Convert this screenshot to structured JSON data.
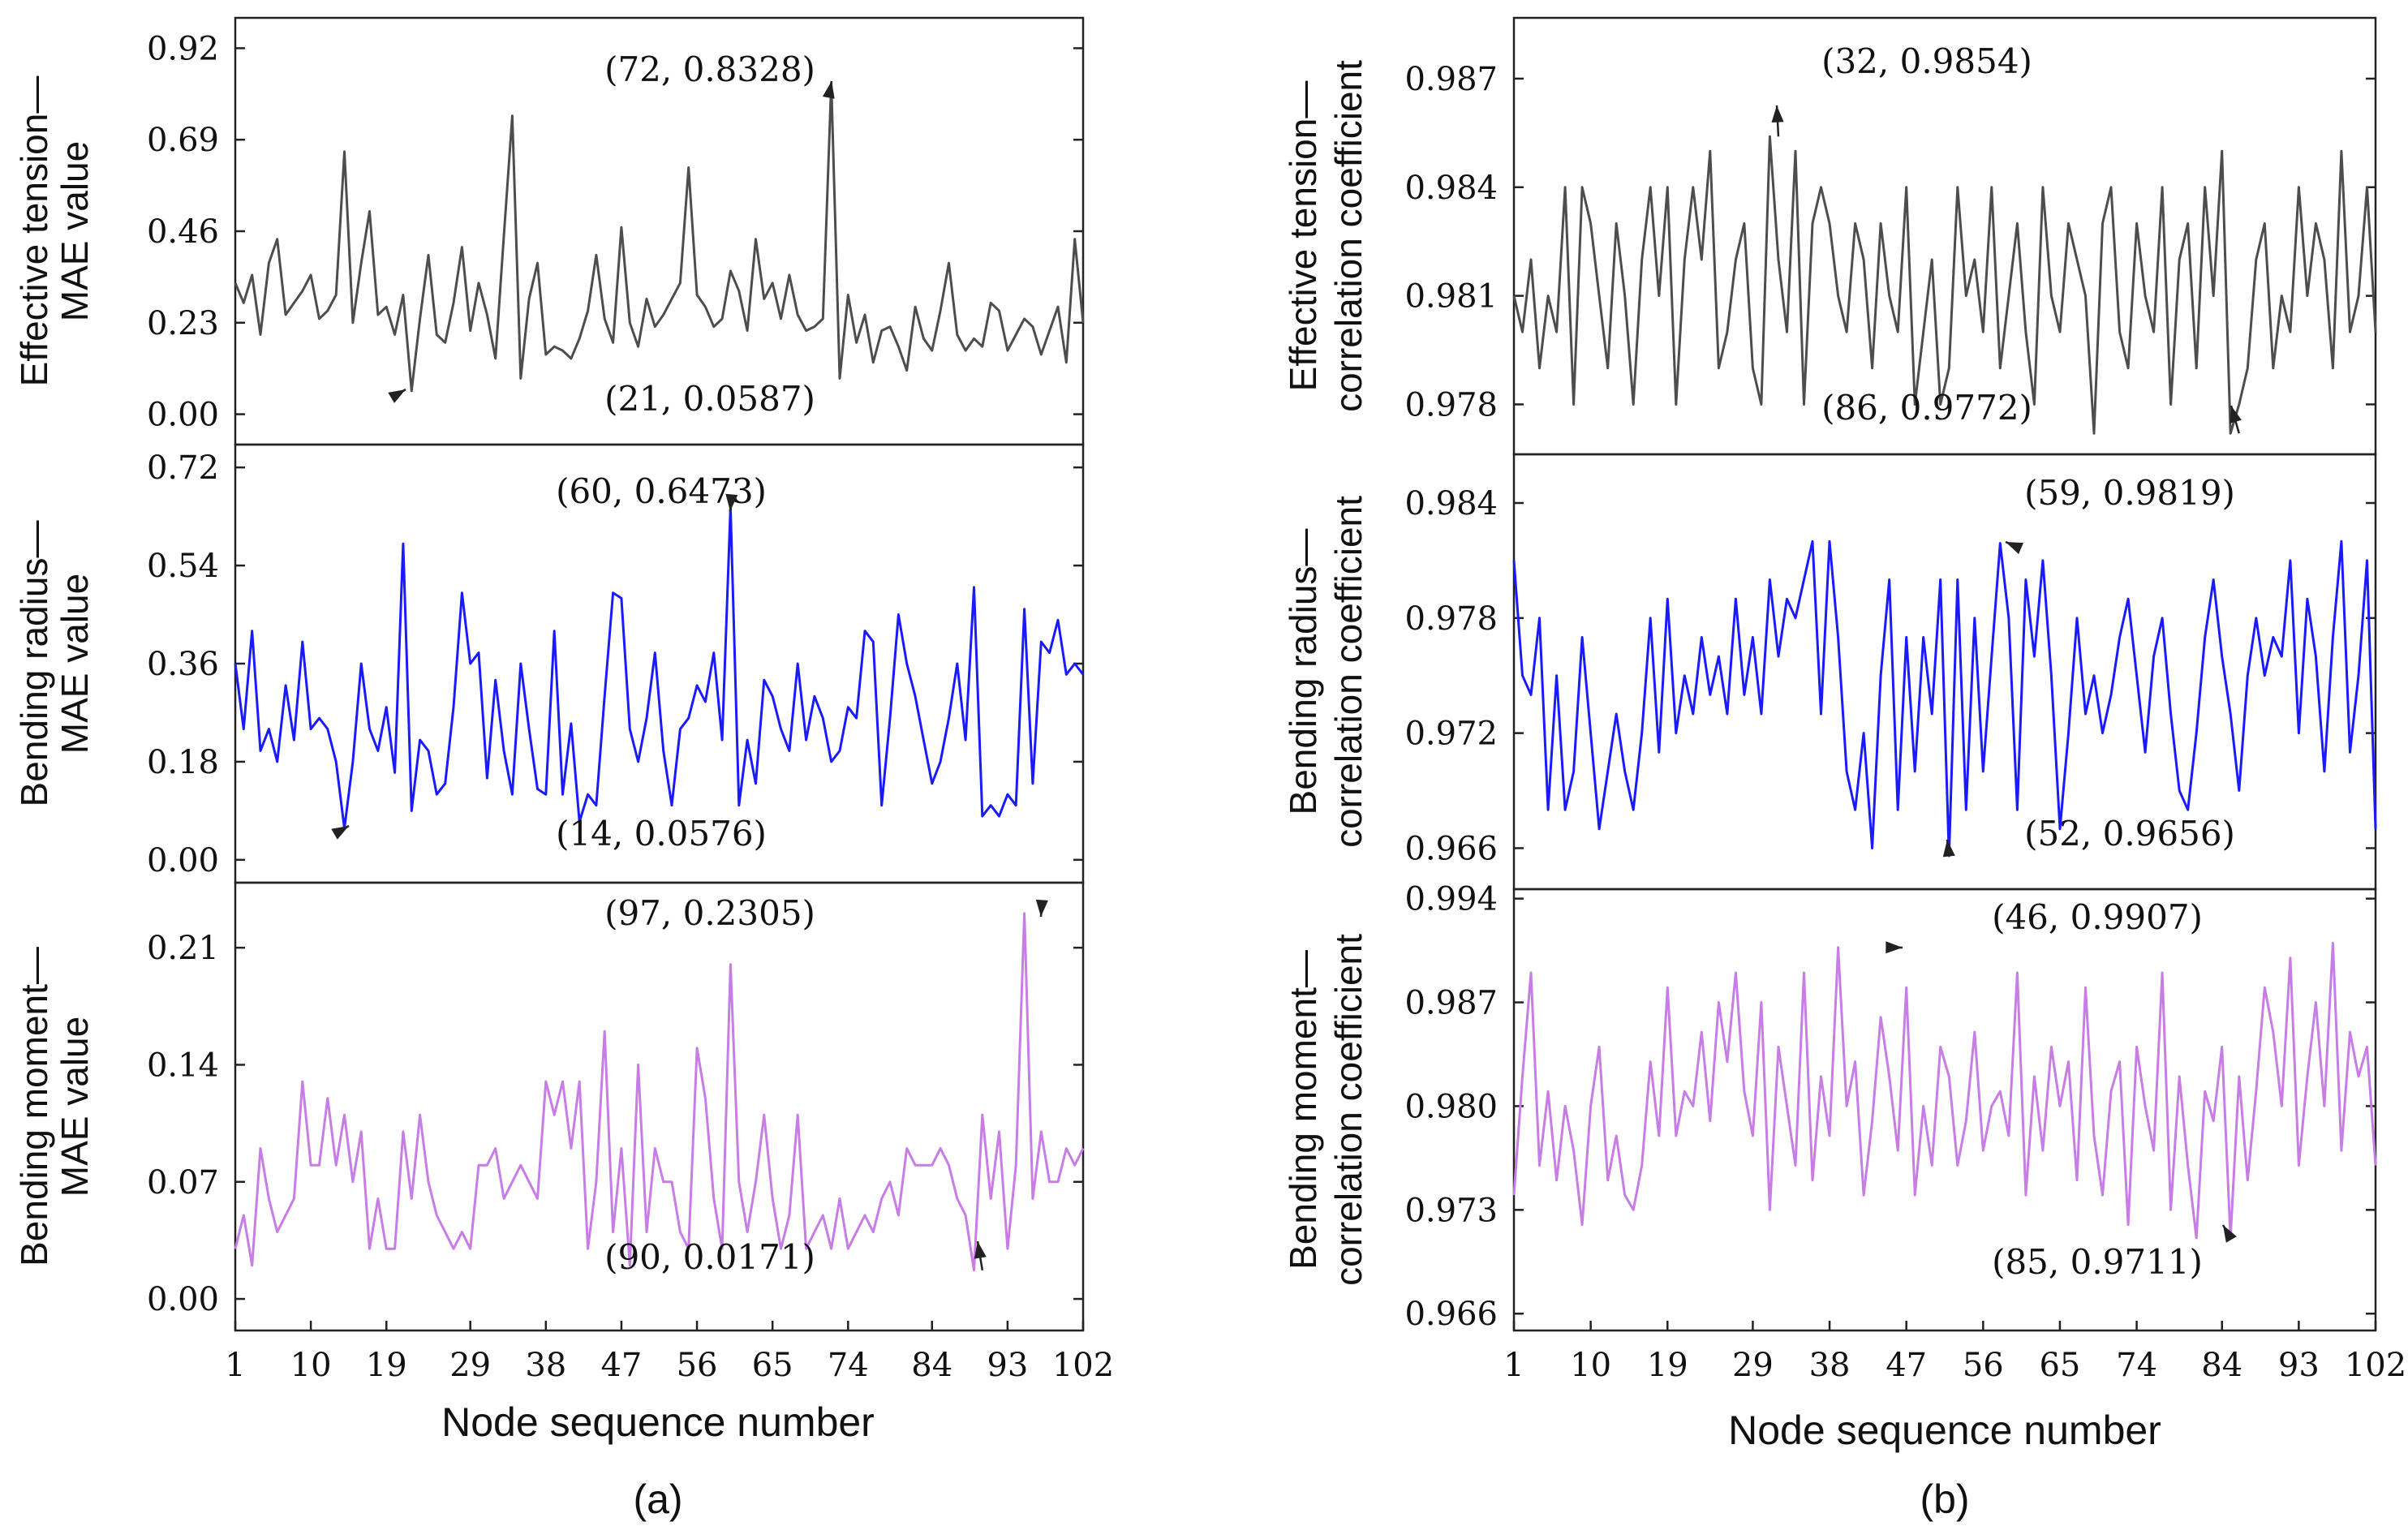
{
  "chart_data": [
    {
      "type": "line",
      "panel": "(a)",
      "xlabel": "Node sequence number",
      "x_ticks": [
        "1",
        "10",
        "19",
        "29",
        "38",
        "47",
        "56",
        "65",
        "74",
        "84",
        "93",
        "102"
      ],
      "xlim": [
        1,
        102
      ],
      "subplots": [
        {
          "series_name": "Effective tension MAE",
          "ylabel_lines": [
            "Effective tension—",
            "MAE value"
          ],
          "color": "#4d4d4d",
          "ylim": [
            -0.06,
            0.98
          ],
          "y_ticks": [
            "0.00",
            "0.23",
            "0.46",
            "0.69",
            "0.92"
          ],
          "values": [
            0.33,
            0.28,
            0.35,
            0.2,
            0.38,
            0.44,
            0.25,
            0.28,
            0.31,
            0.35,
            0.24,
            0.26,
            0.3,
            0.66,
            0.23,
            0.38,
            0.51,
            0.25,
            0.27,
            0.2,
            0.3,
            0.0587,
            0.24,
            0.4,
            0.2,
            0.18,
            0.28,
            0.42,
            0.21,
            0.33,
            0.25,
            0.14,
            0.45,
            0.75,
            0.09,
            0.29,
            0.38,
            0.15,
            0.17,
            0.16,
            0.14,
            0.19,
            0.26,
            0.4,
            0.24,
            0.18,
            0.47,
            0.23,
            0.17,
            0.29,
            0.22,
            0.25,
            0.29,
            0.33,
            0.62,
            0.3,
            0.27,
            0.22,
            0.24,
            0.36,
            0.31,
            0.21,
            0.44,
            0.29,
            0.33,
            0.24,
            0.35,
            0.25,
            0.21,
            0.22,
            0.24,
            0.8328,
            0.09,
            0.3,
            0.18,
            0.25,
            0.13,
            0.21,
            0.22,
            0.17,
            0.11,
            0.27,
            0.19,
            0.16,
            0.26,
            0.38,
            0.2,
            0.16,
            0.19,
            0.17,
            0.28,
            0.26,
            0.16,
            0.2,
            0.24,
            0.22,
            0.15,
            0.21,
            0.27,
            0.13,
            0.44,
            0.23
          ],
          "annotations": [
            {
              "text": "(72,  0.8328)",
              "x": 72,
              "y": 0.8328
            },
            {
              "text": "(21,  0.0587)",
              "x": 21,
              "y": 0.0587
            }
          ]
        },
        {
          "series_name": "Bending radius MAE",
          "ylabel_lines": [
            "Bending radius—",
            "MAE value"
          ],
          "color": "#1a1aff",
          "ylim": [
            -0.03,
            0.75
          ],
          "y_ticks": [
            "0.00",
            "0.18",
            "0.36",
            "0.54",
            "0.72"
          ],
          "values": [
            0.36,
            0.24,
            0.42,
            0.2,
            0.24,
            0.18,
            0.32,
            0.22,
            0.4,
            0.24,
            0.26,
            0.24,
            0.18,
            0.0576,
            0.18,
            0.36,
            0.24,
            0.2,
            0.28,
            0.16,
            0.58,
            0.09,
            0.22,
            0.2,
            0.12,
            0.14,
            0.28,
            0.49,
            0.36,
            0.38,
            0.15,
            0.33,
            0.2,
            0.12,
            0.36,
            0.24,
            0.13,
            0.12,
            0.42,
            0.12,
            0.25,
            0.07,
            0.12,
            0.1,
            0.3,
            0.49,
            0.48,
            0.24,
            0.18,
            0.26,
            0.38,
            0.2,
            0.1,
            0.24,
            0.26,
            0.32,
            0.29,
            0.38,
            0.22,
            0.6473,
            0.1,
            0.22,
            0.14,
            0.33,
            0.3,
            0.24,
            0.2,
            0.36,
            0.22,
            0.3,
            0.26,
            0.18,
            0.2,
            0.28,
            0.26,
            0.42,
            0.4,
            0.1,
            0.26,
            0.45,
            0.36,
            0.3,
            0.22,
            0.14,
            0.18,
            0.26,
            0.36,
            0.22,
            0.5,
            0.08,
            0.1,
            0.08,
            0.12,
            0.1,
            0.46,
            0.14,
            0.4,
            0.38,
            0.44,
            0.34,
            0.36,
            0.34
          ],
          "annotations": [
            {
              "text": "(60,  0.6473)",
              "x": 60,
              "y": 0.6473
            },
            {
              "text": "(14,  0.0576)",
              "x": 14,
              "y": 0.0576
            }
          ]
        },
        {
          "series_name": "Bending moment MAE",
          "ylabel_lines": [
            "Bending moment—",
            "MAE value"
          ],
          "color": "#c77ce6",
          "ylim": [
            -0.015,
            0.245
          ],
          "y_ticks": [
            "0.00",
            "0.07",
            "0.14",
            "0.21"
          ],
          "values": [
            0.03,
            0.05,
            0.02,
            0.09,
            0.06,
            0.04,
            0.05,
            0.06,
            0.13,
            0.08,
            0.08,
            0.12,
            0.08,
            0.11,
            0.07,
            0.1,
            0.03,
            0.06,
            0.03,
            0.03,
            0.1,
            0.06,
            0.11,
            0.07,
            0.05,
            0.04,
            0.03,
            0.04,
            0.03,
            0.08,
            0.08,
            0.09,
            0.06,
            0.07,
            0.08,
            0.07,
            0.06,
            0.13,
            0.11,
            0.13,
            0.09,
            0.13,
            0.03,
            0.07,
            0.16,
            0.04,
            0.09,
            0.02,
            0.14,
            0.04,
            0.09,
            0.07,
            0.07,
            0.04,
            0.03,
            0.15,
            0.12,
            0.06,
            0.03,
            0.2,
            0.07,
            0.04,
            0.07,
            0.11,
            0.06,
            0.03,
            0.05,
            0.11,
            0.03,
            0.04,
            0.05,
            0.03,
            0.06,
            0.03,
            0.04,
            0.05,
            0.04,
            0.06,
            0.07,
            0.05,
            0.09,
            0.08,
            0.08,
            0.08,
            0.09,
            0.08,
            0.06,
            0.05,
            0.0171,
            0.11,
            0.06,
            0.1,
            0.03,
            0.08,
            0.2305,
            0.06,
            0.1,
            0.07,
            0.07,
            0.09,
            0.08,
            0.09
          ],
          "annotations": [
            {
              "text": "(97,  0.2305)",
              "x": 97,
              "y": 0.2305
            },
            {
              "text": "(90,  0.0171)",
              "x": 90,
              "y": 0.0171
            }
          ]
        }
      ]
    },
    {
      "type": "line",
      "panel": "(b)",
      "xlabel": "Node sequence number",
      "x_ticks": [
        "1",
        "10",
        "19",
        "29",
        "38",
        "47",
        "56",
        "65",
        "74",
        "84",
        "93",
        "102"
      ],
      "xlim": [
        1,
        102
      ],
      "subplots": [
        {
          "series_name": "Effective tension correlation coefficient",
          "ylabel_lines": [
            "Effective tension—",
            "correlation coefficient"
          ],
          "color": "#4d4d4d",
          "ylim": [
            0.9768,
            0.9885
          ],
          "y_ticks": [
            "0.978",
            "0.981",
            "0.984",
            "0.987"
          ],
          "values": [
            0.981,
            0.98,
            0.982,
            0.979,
            0.981,
            0.98,
            0.984,
            0.978,
            0.984,
            0.983,
            0.981,
            0.979,
            0.983,
            0.981,
            0.978,
            0.982,
            0.984,
            0.981,
            0.984,
            0.978,
            0.982,
            0.984,
            0.982,
            0.985,
            0.979,
            0.98,
            0.982,
            0.983,
            0.979,
            0.978,
            0.9854,
            0.982,
            0.98,
            0.985,
            0.978,
            0.983,
            0.984,
            0.983,
            0.981,
            0.98,
            0.983,
            0.982,
            0.979,
            0.983,
            0.981,
            0.98,
            0.984,
            0.978,
            0.98,
            0.982,
            0.978,
            0.979,
            0.984,
            0.981,
            0.982,
            0.98,
            0.984,
            0.979,
            0.981,
            0.983,
            0.98,
            0.978,
            0.984,
            0.981,
            0.98,
            0.983,
            0.982,
            0.981,
            0.9772,
            0.983,
            0.984,
            0.98,
            0.979,
            0.983,
            0.981,
            0.98,
            0.984,
            0.978,
            0.982,
            0.983,
            0.979,
            0.984,
            0.981,
            0.985,
            0.9772,
            0.978,
            0.979,
            0.982,
            0.983,
            0.979,
            0.981,
            0.98,
            0.984,
            0.981,
            0.983,
            0.982,
            0.979,
            0.985,
            0.98,
            0.981,
            0.984,
            0.98
          ],
          "annotations": [
            {
              "text": "(32,  0.9854)",
              "x": 32,
              "y": 0.9854
            },
            {
              "text": "(86,  0.9772)",
              "x": 86,
              "y": 0.9772
            }
          ]
        },
        {
          "series_name": "Bending radius correlation coefficient",
          "ylabel_lines": [
            "Bending radius—",
            "correlation coefficient"
          ],
          "color": "#1a1aff",
          "ylim": [
            0.9642,
            0.9862
          ],
          "y_ticks": [
            "0.966",
            "0.972",
            "0.978",
            "0.984"
          ],
          "values": [
            0.981,
            0.975,
            0.974,
            0.978,
            0.968,
            0.975,
            0.968,
            0.97,
            0.977,
            0.972,
            0.967,
            0.97,
            0.973,
            0.97,
            0.968,
            0.972,
            0.978,
            0.971,
            0.979,
            0.972,
            0.975,
            0.973,
            0.977,
            0.974,
            0.976,
            0.973,
            0.979,
            0.974,
            0.977,
            0.973,
            0.98,
            0.976,
            0.979,
            0.978,
            0.98,
            0.982,
            0.973,
            0.982,
            0.977,
            0.97,
            0.968,
            0.972,
            0.966,
            0.975,
            0.98,
            0.968,
            0.977,
            0.97,
            0.977,
            0.973,
            0.98,
            0.9656,
            0.98,
            0.968,
            0.978,
            0.97,
            0.976,
            0.9819,
            0.978,
            0.968,
            0.98,
            0.976,
            0.981,
            0.975,
            0.967,
            0.972,
            0.978,
            0.973,
            0.975,
            0.972,
            0.974,
            0.977,
            0.979,
            0.975,
            0.971,
            0.976,
            0.978,
            0.973,
            0.969,
            0.968,
            0.972,
            0.977,
            0.98,
            0.976,
            0.973,
            0.969,
            0.975,
            0.978,
            0.975,
            0.977,
            0.976,
            0.981,
            0.972,
            0.979,
            0.976,
            0.97,
            0.977,
            0.982,
            0.971,
            0.975,
            0.981,
            0.967
          ],
          "annotations": [
            {
              "text": "(59,  0.9819)",
              "x": 59,
              "y": 0.9819
            },
            {
              "text": "(52,  0.9656)",
              "x": 52,
              "y": 0.9656
            }
          ]
        },
        {
          "series_name": "Bending moment correlation coefficient",
          "ylabel_lines": [
            "Bending moment—",
            "correlation coefficient"
          ],
          "color": "#c77ce6",
          "ylim": [
            0.9653,
            0.9942
          ],
          "y_ticks": [
            "0.966",
            "0.973",
            "0.980",
            "0.987",
            "0.994"
          ],
          "values": [
            0.974,
            0.982,
            0.989,
            0.976,
            0.981,
            0.975,
            0.98,
            0.977,
            0.972,
            0.98,
            0.984,
            0.975,
            0.978,
            0.974,
            0.973,
            0.976,
            0.983,
            0.978,
            0.988,
            0.978,
            0.981,
            0.98,
            0.985,
            0.979,
            0.987,
            0.983,
            0.989,
            0.981,
            0.978,
            0.987,
            0.973,
            0.984,
            0.98,
            0.976,
            0.989,
            0.975,
            0.982,
            0.978,
            0.9907,
            0.98,
            0.983,
            0.974,
            0.979,
            0.986,
            0.982,
            0.977,
            0.988,
            0.974,
            0.98,
            0.976,
            0.984,
            0.982,
            0.976,
            0.979,
            0.985,
            0.977,
            0.98,
            0.981,
            0.978,
            0.989,
            0.974,
            0.982,
            0.977,
            0.984,
            0.98,
            0.983,
            0.975,
            0.988,
            0.978,
            0.974,
            0.981,
            0.983,
            0.972,
            0.984,
            0.98,
            0.977,
            0.989,
            0.973,
            0.982,
            0.976,
            0.9711,
            0.981,
            0.979,
            0.984,
            0.9711,
            0.982,
            0.975,
            0.981,
            0.988,
            0.985,
            0.98,
            0.99,
            0.976,
            0.982,
            0.987,
            0.98,
            0.991,
            0.977,
            0.985,
            0.982,
            0.984,
            0.976
          ],
          "annotations": [
            {
              "text": "(46,  0.9907)",
              "x": 46,
              "y": 0.9907
            },
            {
              "text": "(85,  0.9711)",
              "x": 85,
              "y": 0.9711
            }
          ]
        }
      ]
    }
  ]
}
